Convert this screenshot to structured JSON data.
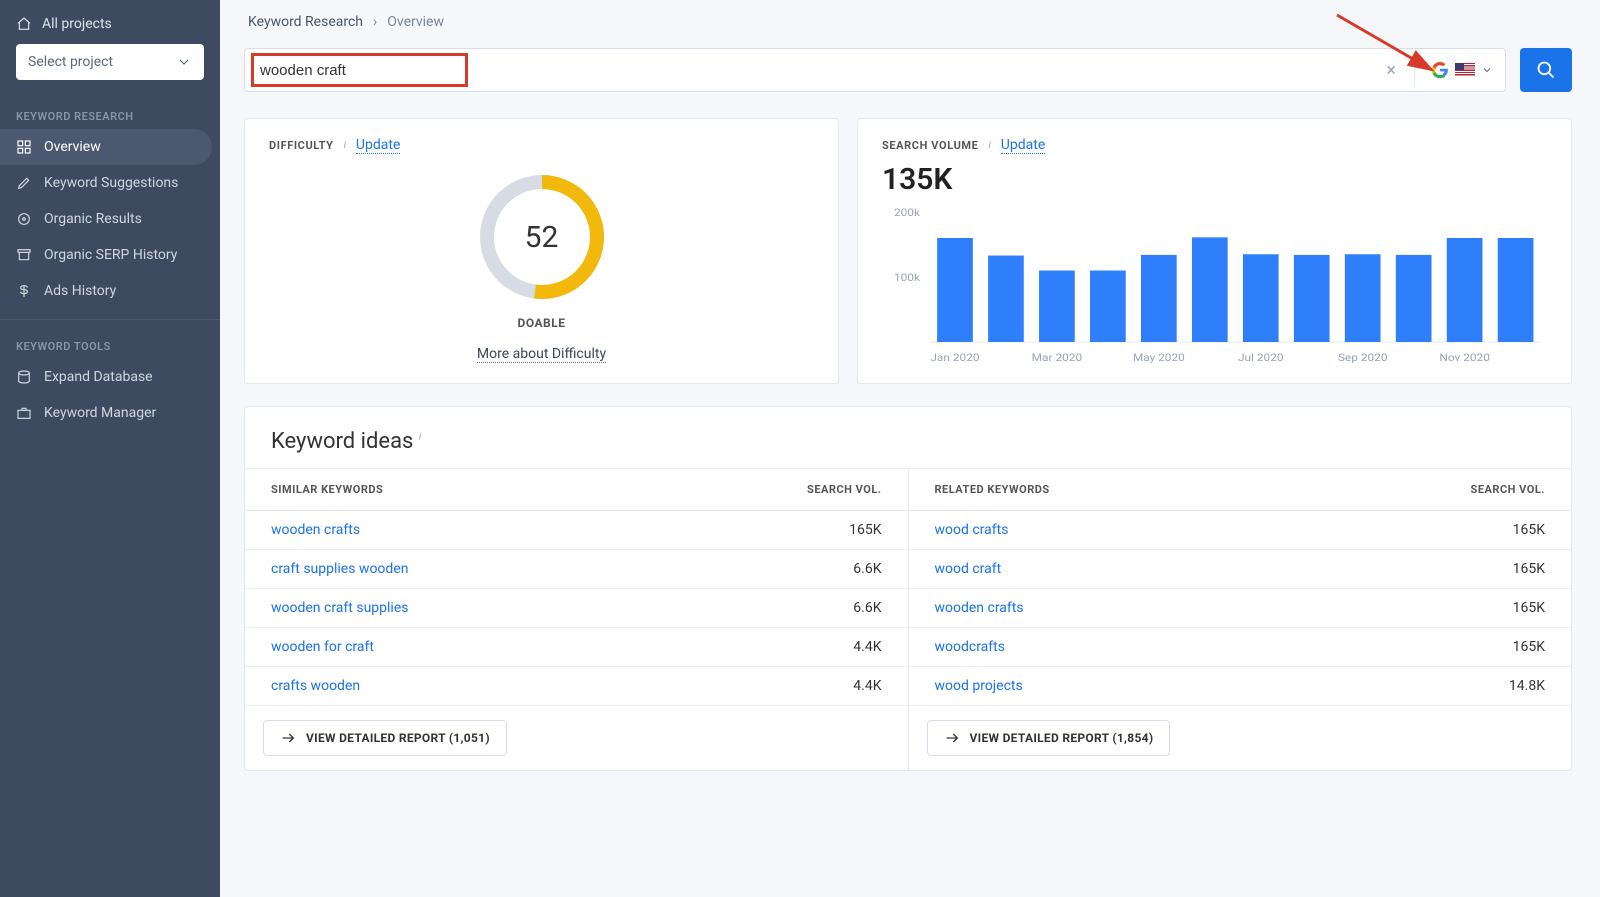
{
  "sidebar": {
    "all_projects": "All projects",
    "select_project": "Select project",
    "section_research": "KEYWORD RESEARCH",
    "section_tools": "KEYWORD TOOLS",
    "nav": {
      "overview": "Overview",
      "suggestions": "Keyword Suggestions",
      "organic_results": "Organic Results",
      "serp_history": "Organic SERP History",
      "ads_history": "Ads History",
      "expand_db": "Expand Database",
      "kw_manager": "Keyword Manager"
    }
  },
  "breadcrumb": {
    "root": "Keyword Research",
    "current": "Overview"
  },
  "search": {
    "value": "wooden craft"
  },
  "difficulty": {
    "label": "DIFFICULTY",
    "update": "Update",
    "score": "52",
    "percent": 52,
    "score_label": "DOABLE",
    "more": "More about Difficulty",
    "ring_color": "#f2b90c",
    "ring_bg": "#d7dce4"
  },
  "volume": {
    "label": "SEARCH VOLUME",
    "update": "Update",
    "value": "135K",
    "chart": {
      "type": "bar",
      "ylim": [
        0,
        200
      ],
      "ylabels": [
        "200k",
        "100k"
      ],
      "bar_color": "#2f7efb",
      "axis_color": "#9aa3b5",
      "grid_color": "#e4e9f0",
      "months": [
        "Jan 2020",
        "",
        "Mar 2020",
        "",
        "May 2020",
        "",
        "Jul 2020",
        "",
        "Sep 2020",
        "",
        "Nov 2020",
        ""
      ],
      "values": [
        160,
        133,
        110,
        110,
        134,
        161,
        135,
        134,
        135,
        134,
        160,
        160
      ]
    }
  },
  "ideas": {
    "title": "Keyword ideas",
    "similar": {
      "header": "SIMILAR KEYWORDS",
      "vol_header": "SEARCH VOL.",
      "rows": [
        {
          "kw": "wooden crafts",
          "vol": "165K"
        },
        {
          "kw": "craft supplies wooden",
          "vol": "6.6K"
        },
        {
          "kw": "wooden craft supplies",
          "vol": "6.6K"
        },
        {
          "kw": "wooden for craft",
          "vol": "4.4K"
        },
        {
          "kw": "crafts wooden",
          "vol": "4.4K"
        }
      ],
      "detail_btn": "VIEW DETAILED REPORT (1,051)"
    },
    "related": {
      "header": "RELATED KEYWORDS",
      "vol_header": "SEARCH VOL.",
      "rows": [
        {
          "kw": "wood crafts",
          "vol": "165K"
        },
        {
          "kw": "wood craft",
          "vol": "165K"
        },
        {
          "kw": "wooden crafts",
          "vol": "165K"
        },
        {
          "kw": "woodcrafts",
          "vol": "165K"
        },
        {
          "kw": "wood projects",
          "vol": "14.8K"
        }
      ],
      "detail_btn": "VIEW DETAILED REPORT (1,854)"
    }
  }
}
